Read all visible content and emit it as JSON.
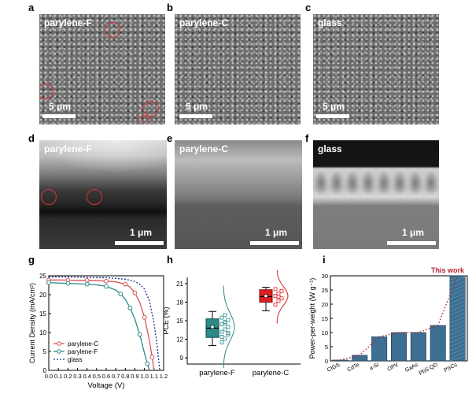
{
  "panels": {
    "a": {
      "label": "a",
      "title": "parylene-F",
      "scale": "5 μm"
    },
    "b": {
      "label": "b",
      "title": "parylene-C",
      "scale": "5 μm"
    },
    "c": {
      "label": "c",
      "title": "glass",
      "scale": "5 μm"
    },
    "d": {
      "label": "d",
      "title": "parylene-F",
      "scale": "1 μm"
    },
    "e": {
      "label": "e",
      "title": "parylene-C",
      "scale": "1 μm"
    },
    "f": {
      "label": "f",
      "title": "glass",
      "scale": "1 μm"
    },
    "g": {
      "label": "g"
    },
    "h": {
      "label": "h"
    },
    "i": {
      "label": "i"
    }
  },
  "colors": {
    "parylene_c": "#d9535a",
    "parylene_f": "#2a8a88",
    "glass": "#1f2f8f",
    "bars": "#3c6f92",
    "dotted": "#b52232"
  },
  "chart_data": [
    {
      "type": "line",
      "panel": "g",
      "xlabel": "Voltage (V)",
      "ylabel": "Current Density (mA/cm²)",
      "xlim": [
        0.0,
        1.2
      ],
      "ylim": [
        0,
        25
      ],
      "xticks": [
        "0.0",
        "0.1",
        "0.2",
        "0.3",
        "0.4",
        "0.5",
        "0.6",
        "0.7",
        "0.8",
        "0.9",
        "1.0",
        "1.1",
        "1.2"
      ],
      "yticks": [
        "0",
        "5",
        "10",
        "15",
        "20",
        "25"
      ],
      "legend": "bottom-left",
      "series": [
        {
          "name": "parylene-C",
          "x": [
            0,
            0.1,
            0.2,
            0.3,
            0.4,
            0.5,
            0.6,
            0.7,
            0.8,
            0.85,
            0.9,
            0.95,
            1.0,
            1.05,
            1.08,
            1.1
          ],
          "y": [
            23.9,
            23.9,
            23.85,
            23.8,
            23.8,
            23.7,
            23.6,
            23.4,
            22.8,
            22.0,
            20.5,
            18.0,
            14.0,
            8.0,
            3.5,
            0
          ]
        },
        {
          "name": "parylene-F",
          "x": [
            0,
            0.1,
            0.2,
            0.3,
            0.4,
            0.5,
            0.6,
            0.7,
            0.75,
            0.8,
            0.85,
            0.9,
            0.95,
            1.0,
            1.03,
            1.05
          ],
          "y": [
            23.2,
            23.1,
            23.0,
            22.9,
            22.8,
            22.6,
            22.2,
            21.2,
            20.2,
            18.8,
            16.5,
            13.5,
            9.5,
            4.5,
            1.8,
            0
          ]
        },
        {
          "name": "glass",
          "x": [
            0,
            0.2,
            0.4,
            0.6,
            0.8,
            0.9,
            0.95,
            1.0,
            1.05,
            1.1,
            1.13,
            1.16
          ],
          "y": [
            24.7,
            24.7,
            24.6,
            24.5,
            24.1,
            23.5,
            22.8,
            21.5,
            18.5,
            12.5,
            7.0,
            0
          ]
        }
      ]
    },
    {
      "type": "box",
      "panel": "h",
      "ylabel": "PCE (%)",
      "ylim": [
        8,
        22
      ],
      "yticks": [
        "9",
        "12",
        "15",
        "18",
        "21"
      ],
      "categories": [
        "parylene-F",
        "parylene-C"
      ],
      "boxes": [
        {
          "name": "parylene-F",
          "min": 11.0,
          "q1": 12.3,
          "median": 13.8,
          "q3": 15.3,
          "max": 16.5,
          "mean": 14.0,
          "points": [
            11.5,
            12.1,
            12.8,
            13.2,
            13.6,
            14.0,
            14.4,
            14.8,
            15.1,
            15.5,
            15.9,
            13.0,
            12.4,
            14.6
          ]
        },
        {
          "name": "parylene-C",
          "min": 16.6,
          "q1": 18.0,
          "median": 18.9,
          "q3": 20.0,
          "max": 20.4,
          "mean": 19.0,
          "points": [
            17.6,
            18.2,
            18.6,
            19.0,
            19.4,
            19.8,
            20.1,
            18.9
          ]
        }
      ]
    },
    {
      "type": "bar",
      "panel": "i",
      "ylabel": "Power-per-weight (W g⁻¹)",
      "ylim": [
        0,
        30
      ],
      "yticks": [
        "0",
        "5",
        "10",
        "15",
        "20",
        "25",
        "30"
      ],
      "categories": [
        "CIGS",
        "CdTe",
        "a-Si",
        "OPV",
        "GaAs",
        "PbS QD",
        "PSCs"
      ],
      "values": [
        0.3,
        2.0,
        8.5,
        10.0,
        10.0,
        12.5,
        30.0
      ],
      "annotation": "This work"
    }
  ]
}
